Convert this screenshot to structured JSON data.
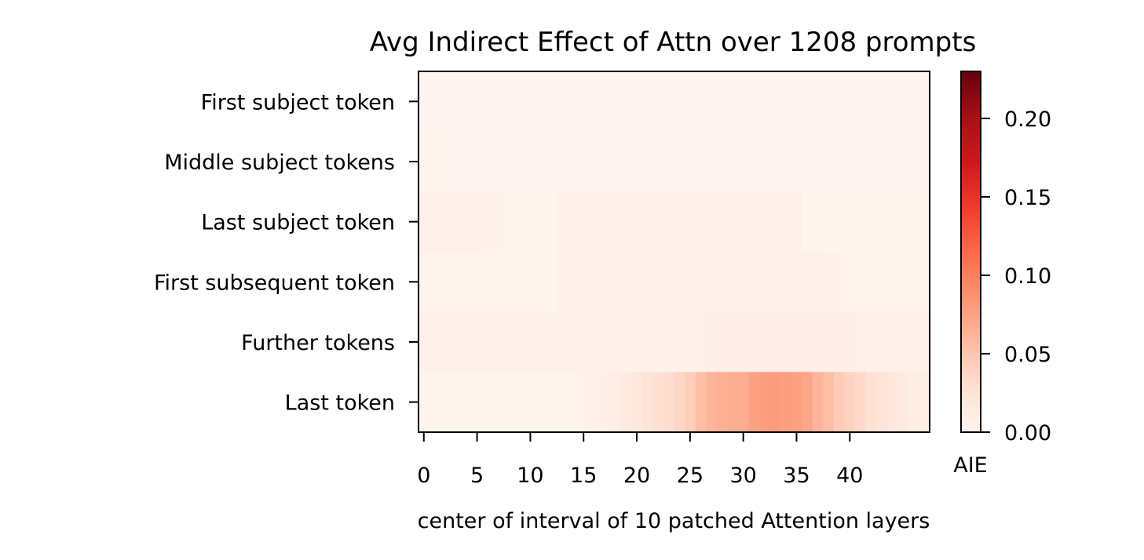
{
  "chart_data": {
    "type": "heatmap",
    "title": "Avg Indirect Effect of Attn over 1208 prompts",
    "xlabel": "center of interval of 10 patched Attention layers",
    "ylabel": "",
    "rows": [
      "First subject token",
      "Middle subject tokens",
      "Last subject token",
      "First subsequent token",
      "Further tokens",
      "Last token"
    ],
    "x": [
      0,
      1,
      2,
      3,
      4,
      5,
      6,
      7,
      8,
      9,
      10,
      11,
      12,
      13,
      14,
      15,
      16,
      17,
      18,
      19,
      20,
      21,
      22,
      23,
      24,
      25,
      26,
      27,
      28,
      29,
      30,
      31,
      32,
      33,
      34,
      35,
      36,
      37,
      38,
      39,
      40,
      41,
      42,
      43,
      44,
      45,
      46,
      47
    ],
    "x_ticks": [
      0,
      5,
      10,
      15,
      20,
      25,
      30,
      35,
      40
    ],
    "x_tick_labels": [
      "0",
      "5",
      "10",
      "15",
      "20",
      "25",
      "30",
      "35",
      "40"
    ],
    "values": [
      [
        0.001,
        0.001,
        0.001,
        0.001,
        0.001,
        0.001,
        0.001,
        0.001,
        0.001,
        0.001,
        0.001,
        0.001,
        0.001,
        0.001,
        0.001,
        0.001,
        0.001,
        0.001,
        0.001,
        0.001,
        0.001,
        0.001,
        0.001,
        0.001,
        0.001,
        0.001,
        0.001,
        0.001,
        0.001,
        0.001,
        0.001,
        0.001,
        0.001,
        0.001,
        0.001,
        0.001,
        0.001,
        0.001,
        0.001,
        0.001,
        0.001,
        0.001,
        0.001,
        0.001,
        0.001,
        0.001,
        0.001,
        0.001
      ],
      [
        0.002,
        0.002,
        0.002,
        0.001,
        0.001,
        0.001,
        0.001,
        0.001,
        0.001,
        0.001,
        0.001,
        0.001,
        0.001,
        0.001,
        0.001,
        0.001,
        0.001,
        0.001,
        0.001,
        0.001,
        0.001,
        0.001,
        0.001,
        0.001,
        0.001,
        0.001,
        0.001,
        0.001,
        0.001,
        0.001,
        0.001,
        0.001,
        0.001,
        0.001,
        0.001,
        0.001,
        0.001,
        0.001,
        0.001,
        0.001,
        0.001,
        0.001,
        0.001,
        0.001,
        0.001,
        0.001,
        0.001,
        0.001
      ],
      [
        0.007,
        0.007,
        0.007,
        0.007,
        0.007,
        0.006,
        0.005,
        0.004,
        0.002,
        0.002,
        0.002,
        0.002,
        0.002,
        0.004,
        0.004,
        0.004,
        0.005,
        0.005,
        0.005,
        0.005,
        0.005,
        0.006,
        0.006,
        0.006,
        0.006,
        0.006,
        0.006,
        0.006,
        0.006,
        0.006,
        0.006,
        0.006,
        0.006,
        0.006,
        0.006,
        0.006,
        0.002,
        0.002,
        0.002,
        0.002,
        0.002,
        0.002,
        0.002,
        0.002,
        0.002,
        0.002,
        0.002,
        0.002
      ],
      [
        0.003,
        0.003,
        0.003,
        0.003,
        0.003,
        0.003,
        0.003,
        0.003,
        0.003,
        0.003,
        0.003,
        0.003,
        0.002,
        0.004,
        0.004,
        0.004,
        0.004,
        0.004,
        0.004,
        0.004,
        0.004,
        0.004,
        0.004,
        0.005,
        0.005,
        0.005,
        0.005,
        0.005,
        0.005,
        0.005,
        0.006,
        0.006,
        0.006,
        0.006,
        0.006,
        0.006,
        0.006,
        0.006,
        0.005,
        0.005,
        0.003,
        0.003,
        0.003,
        0.003,
        0.003,
        0.003,
        0.003,
        0.003
      ],
      [
        0.006,
        0.006,
        0.006,
        0.006,
        0.006,
        0.006,
        0.006,
        0.006,
        0.006,
        0.006,
        0.006,
        0.006,
        0.006,
        0.006,
        0.006,
        0.006,
        0.006,
        0.006,
        0.006,
        0.007,
        0.007,
        0.007,
        0.007,
        0.007,
        0.007,
        0.007,
        0.007,
        0.008,
        0.008,
        0.008,
        0.008,
        0.008,
        0.008,
        0.008,
        0.008,
        0.008,
        0.008,
        0.008,
        0.008,
        0.008,
        0.008,
        0.007,
        0.007,
        0.007,
        0.007,
        0.007,
        0.007,
        0.007
      ],
      [
        0.002,
        0.002,
        0.002,
        0.002,
        0.002,
        0.002,
        0.002,
        0.002,
        0.002,
        0.002,
        0.002,
        0.002,
        0.002,
        0.002,
        0.003,
        0.004,
        0.006,
        0.008,
        0.011,
        0.015,
        0.019,
        0.023,
        0.027,
        0.031,
        0.036,
        0.042,
        0.055,
        0.062,
        0.065,
        0.067,
        0.068,
        0.075,
        0.078,
        0.079,
        0.078,
        0.076,
        0.072,
        0.062,
        0.055,
        0.045,
        0.04,
        0.034,
        0.028,
        0.023,
        0.019,
        0.015,
        0.012,
        0.01
      ]
    ],
    "colormap": "Reds",
    "colormap_stops": [
      "#fff5f0",
      "#fee0d2",
      "#fcbba1",
      "#fc9272",
      "#fb6a4a",
      "#ef3b2c",
      "#cb181d",
      "#a50f15",
      "#67000d"
    ],
    "vmin": 0,
    "vmax": 0.23,
    "colorbar": {
      "label": "AIE",
      "ticks": [
        0.0,
        0.05,
        0.1,
        0.15,
        0.2
      ],
      "tick_labels": [
        "0.00",
        "0.05",
        "0.10",
        "0.15",
        "0.20"
      ]
    }
  }
}
